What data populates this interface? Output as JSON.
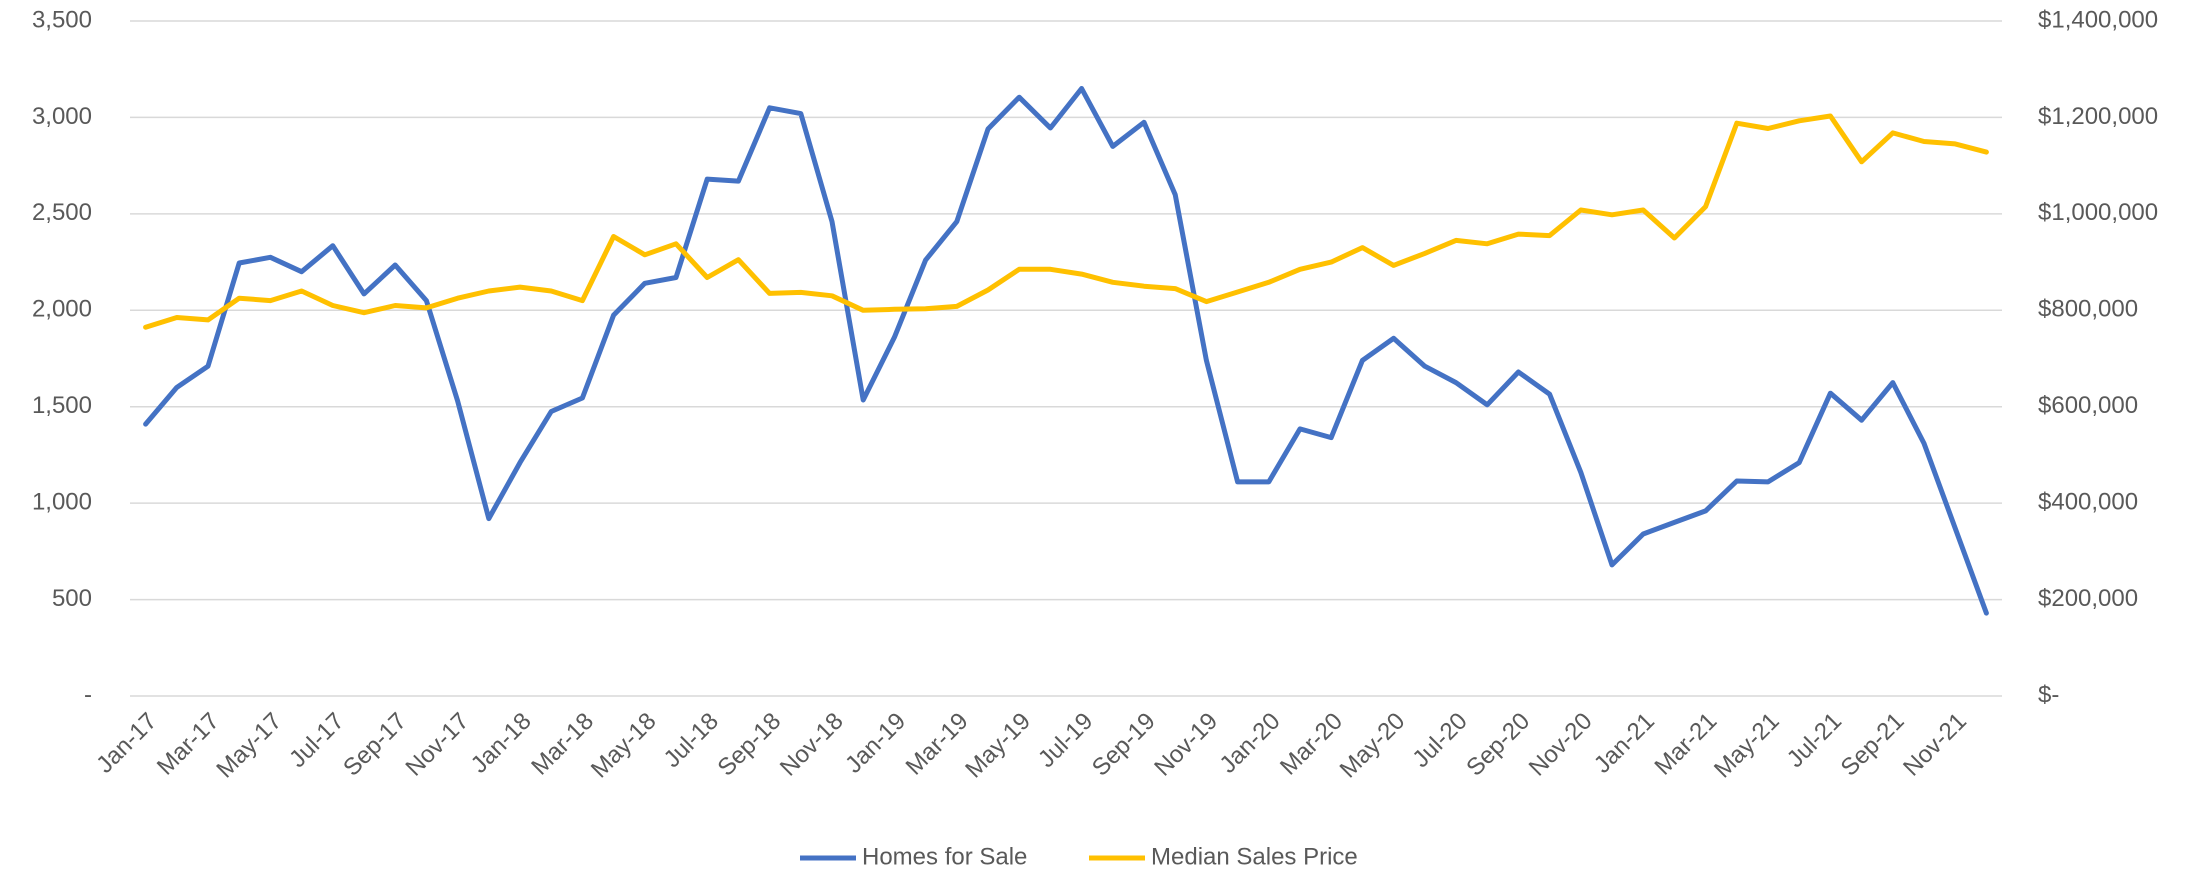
{
  "chart_data": {
    "type": "line",
    "categories": [
      "Jan-17",
      null,
      "Mar-17",
      null,
      "May-17",
      null,
      "Jul-17",
      null,
      "Sep-17",
      null,
      "Nov-17",
      null,
      "Jan-18",
      null,
      "Mar-18",
      null,
      "May-18",
      null,
      "Jul-18",
      null,
      "Sep-18",
      null,
      "Nov-18",
      null,
      "Jan-19",
      null,
      "Mar-19",
      null,
      "May-19",
      null,
      "Jul-19",
      null,
      "Sep-19",
      null,
      "Nov-19",
      null,
      "Jan-20",
      null,
      "Mar-20",
      null,
      "May-20",
      null,
      "Jul-20",
      null,
      "Sep-20",
      null,
      "Nov-20",
      null,
      "Jan-21",
      null,
      "Mar-21",
      null,
      "May-21",
      null,
      "Jul-21",
      null,
      "Sep-21",
      null,
      "Nov-21",
      null
    ],
    "series": [
      {
        "name": "Homes for Sale",
        "color": "#4472c4",
        "values": [
          1410,
          1600,
          1710,
          2245,
          2275,
          2200,
          2335,
          2085,
          2235,
          2050,
          1530,
          920,
          1210,
          1475,
          1545,
          1975,
          2140,
          2170,
          2680,
          2670,
          3050,
          3020,
          2460,
          1535,
          1860,
          2260,
          2460,
          2940,
          3105,
          2945,
          3150,
          2850,
          2975,
          2600,
          1740,
          1110,
          1110,
          1385,
          1340,
          1740,
          1855,
          1710,
          1625,
          1510,
          1680,
          1565,
          1160,
          680,
          840,
          900,
          960,
          1115,
          1110,
          1210,
          1570,
          1430,
          1625,
          1310,
          870,
          430
        ]
      },
      {
        "name": "Median Sales Price",
        "color": "#ffc000",
        "axis": "y2",
        "values": [
          765000,
          785000,
          780000,
          825000,
          820000,
          840000,
          810000,
          795000,
          810000,
          805000,
          825000,
          840000,
          848000,
          840000,
          820000,
          953000,
          915000,
          938000,
          868000,
          905000,
          835000,
          837000,
          830000,
          800000,
          802000,
          803000,
          808000,
          842000,
          885000,
          885000,
          875000,
          858000,
          850000,
          845000,
          818000,
          838000,
          858000,
          885000,
          900000,
          930000,
          893000,
          918000,
          945000,
          938000,
          958000,
          955000,
          1008000,
          998000,
          1008000,
          950000,
          1015000,
          1188000,
          1177000,
          1193000,
          1203000,
          1108000,
          1168000,
          1150000,
          1145000,
          1128000
        ]
      }
    ],
    "ylim": [
      0,
      3500
    ],
    "yticks": [
      {
        "value": 0,
        "label": "-"
      },
      500,
      {
        "value": 1000,
        "label": "1,000"
      },
      {
        "value": 1500,
        "label": "1,500"
      },
      {
        "value": 2000,
        "label": "2,000"
      },
      {
        "value": 2500,
        "label": "2,500"
      },
      {
        "value": 3000,
        "label": "3,000"
      },
      {
        "value": 3500,
        "label": "3,500"
      }
    ],
    "y2lim": [
      0,
      1400000
    ],
    "y2ticks": [
      {
        "value": 0,
        "label": "$-"
      },
      {
        "value": 200000,
        "label": "$200,000"
      },
      {
        "value": 400000,
        "label": "$400,000"
      },
      {
        "value": 600000,
        "label": "$600,000"
      },
      {
        "value": 800000,
        "label": "$800,000"
      },
      {
        "value": 1000000,
        "label": "$1,000,000"
      },
      {
        "value": 1200000,
        "label": "$1,200,000"
      },
      {
        "value": 1400000,
        "label": "$1,400,000"
      }
    ],
    "grid": true,
    "legend": "bottom"
  }
}
